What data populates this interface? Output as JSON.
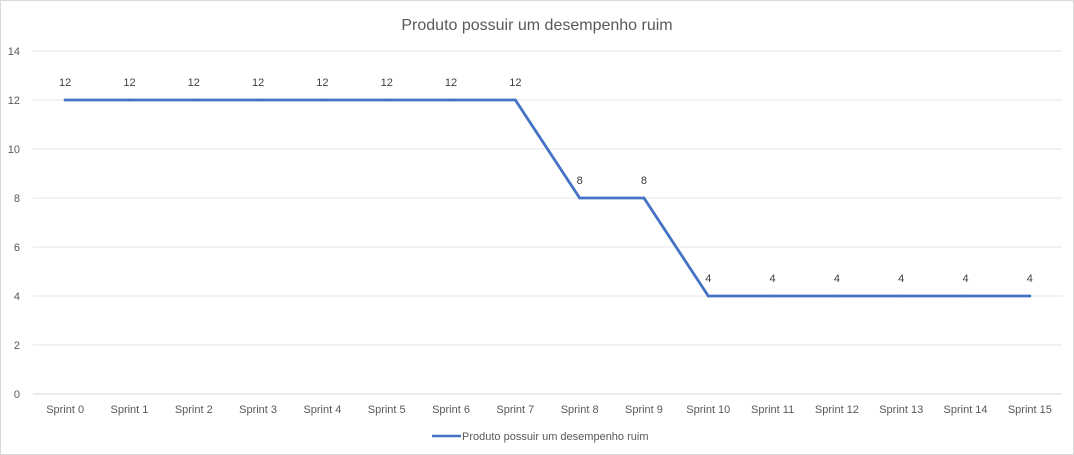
{
  "chart_data": {
    "type": "line",
    "title": "Produto possuir um desempenho ruim",
    "xlabel": "",
    "ylabel": "",
    "categories": [
      "Sprint 0",
      "Sprint 1",
      "Sprint 2",
      "Sprint 3",
      "Sprint 4",
      "Sprint 5",
      "Sprint 6",
      "Sprint 7",
      "Sprint 8",
      "Sprint 9",
      "Sprint 10",
      "Sprint 11",
      "Sprint 12",
      "Sprint 13",
      "Sprint 14",
      "Sprint 15"
    ],
    "series": [
      {
        "name": "Produto possuir um desempenho ruim",
        "color": "#4472c4",
        "values": [
          12,
          12,
          12,
          12,
          12,
          12,
          12,
          12,
          8,
          8,
          4,
          4,
          4,
          4,
          4,
          4
        ]
      }
    ],
    "ylim": [
      0,
      14
    ],
    "yticks": [
      0,
      2,
      4,
      6,
      8,
      10,
      12,
      14
    ],
    "grid": true,
    "data_labels": true,
    "legend_position": "bottom"
  }
}
